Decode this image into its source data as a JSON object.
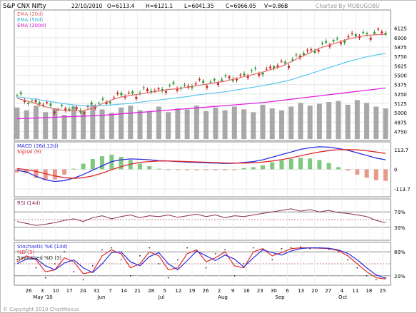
{
  "header": {
    "symbol": "S&P CNX Nifty",
    "date": "22/10/2010",
    "open": "O=6113.4",
    "high": "H=6121.1",
    "low": "L=6041.35",
    "close": "C=6066.05",
    "volume": "V=0.86B",
    "credit": "Charted By MOBUGOBU"
  },
  "footer": {
    "copyright": "© Copyright 2010 ChartNexus"
  },
  "colors": {
    "up": "#2d9c2d",
    "down": "#cc2222",
    "ema20": "#e36a6a",
    "ema50": "#58c8ee",
    "ema200": "#e020e0",
    "volume": "#a8a8a8",
    "macd": "#2c2ce0",
    "signal": "#e02a2a",
    "rsi": "#8a2a5a",
    "k": "#2c2ce0",
    "d": "#e02a2a",
    "smoothed": "#202020"
  },
  "chart_data": [
    {
      "type": "candlestick",
      "legend": [
        "EMA (20d)",
        "EMA (50d)",
        "EMA (200d)"
      ],
      "y_ticks": [
        6125,
        6000,
        5875,
        5750,
        5625,
        5500,
        5375,
        5250,
        5125,
        5000,
        4875,
        4750
      ],
      "ylim": [
        4650,
        6350
      ],
      "series": [
        {
          "name": "EMA (20d)",
          "values": [
            5190,
            5160,
            5120,
            5080,
            5050,
            5030,
            5025,
            5030,
            5060,
            5120,
            5170,
            5210,
            5230,
            5250,
            5270,
            5290,
            5310,
            5320,
            5340,
            5360,
            5380,
            5400,
            5420,
            5450,
            5480,
            5510,
            5540,
            5580,
            5620,
            5680,
            5740,
            5800,
            5860,
            5900,
            5940,
            5980,
            6010,
            6030,
            6040,
            6045
          ]
        },
        {
          "name": "EMA (50d)",
          "values": [
            5210,
            5195,
            5180,
            5160,
            5140,
            5120,
            5105,
            5095,
            5090,
            5095,
            5105,
            5115,
            5125,
            5140,
            5155,
            5170,
            5185,
            5200,
            5215,
            5235,
            5250,
            5265,
            5280,
            5300,
            5320,
            5340,
            5360,
            5385,
            5410,
            5440,
            5480,
            5520,
            5560,
            5600,
            5640,
            5680,
            5715,
            5745,
            5770,
            5790
          ]
        },
        {
          "name": "EMA (200d)",
          "values": [
            4920,
            4925,
            4930,
            4935,
            4940,
            4945,
            4950,
            4955,
            4960,
            4965,
            4975,
            4985,
            4995,
            5005,
            5015,
            5025,
            5035,
            5045,
            5055,
            5065,
            5075,
            5085,
            5095,
            5105,
            5115,
            5125,
            5135,
            5150,
            5165,
            5180,
            5195,
            5210,
            5225,
            5240,
            5255,
            5270,
            5285,
            5300,
            5315,
            5330
          ]
        }
      ],
      "volume": [
        68,
        62,
        72,
        58,
        66,
        52,
        70,
        60,
        74,
        64,
        56,
        68,
        72,
        62,
        60,
        70,
        58,
        66,
        64,
        72,
        60,
        68,
        62,
        70,
        64,
        58,
        74,
        66,
        62,
        70,
        78,
        72,
        76,
        80,
        82,
        74,
        84,
        78,
        70,
        66
      ]
    },
    {
      "type": "line",
      "name": "MACD",
      "legend": [
        "MACD (26d,12d)",
        "Signal (9)"
      ],
      "y_ticks": [
        "113.7",
        "0",
        "-113.7"
      ],
      "ylim": [
        -150,
        150
      ],
      "series": [
        {
          "name": "MACD (26d,12d)",
          "values": [
            -5,
            -15,
            -40,
            -60,
            -70,
            -65,
            -50,
            -30,
            -5,
            20,
            45,
            55,
            60,
            58,
            55,
            50,
            48,
            45,
            42,
            40,
            38,
            36,
            34,
            35,
            40,
            45,
            55,
            70,
            85,
            100,
            115,
            125,
            130,
            128,
            120,
            110,
            95,
            80,
            65,
            55
          ]
        },
        {
          "name": "Signal (9)",
          "values": [
            5,
            -2,
            -12,
            -25,
            -38,
            -48,
            -52,
            -48,
            -38,
            -22,
            -2,
            15,
            30,
            40,
            45,
            48,
            48,
            47,
            45,
            43,
            41,
            39,
            37,
            36,
            36,
            38,
            42,
            48,
            56,
            66,
            78,
            90,
            100,
            108,
            113,
            114,
            112,
            107,
            100,
            92
          ]
        }
      ]
    },
    {
      "type": "line",
      "name": "RSI",
      "legend": [
        "RSI (14d)"
      ],
      "y_ticks": [
        "70%",
        "30%"
      ],
      "ylim": [
        0,
        100
      ],
      "series": [
        {
          "name": "RSI (14d)",
          "values": [
            45,
            40,
            35,
            38,
            42,
            48,
            52,
            45,
            55,
            60,
            52,
            58,
            62,
            55,
            60,
            58,
            62,
            56,
            60,
            64,
            58,
            62,
            55,
            60,
            58,
            62,
            66,
            70,
            74,
            78,
            72,
            76,
            70,
            74,
            68,
            66,
            62,
            58,
            48,
            42
          ]
        }
      ]
    },
    {
      "type": "line",
      "name": "Stochastic",
      "legend": [
        "Stochastic %K (14d)",
        "%D (3)",
        "Smoothed %D (3)"
      ],
      "y_ticks": [
        "80%",
        "20%"
      ],
      "ylim": [
        0,
        100
      ],
      "x_ticks": [
        "26",
        "3",
        "10",
        "17",
        "24",
        "31",
        "7",
        "14",
        "21",
        "28",
        "5",
        "12",
        "19",
        "26",
        "2",
        "9",
        "16",
        "23",
        "30",
        "6",
        "13",
        "20",
        "27",
        "4",
        "11",
        "18",
        "25"
      ],
      "month_labels": [
        "May '10",
        "Jun",
        "Jul",
        "Aug",
        "Sep",
        "Oct"
      ],
      "series": [
        {
          "name": "Stochastic %K (14d)",
          "values": [
            60,
            85,
            40,
            15,
            50,
            80,
            30,
            10,
            45,
            85,
            90,
            60,
            20,
            70,
            90,
            50,
            15,
            60,
            90,
            80,
            40,
            75,
            85,
            20,
            50,
            90,
            85,
            60,
            88,
            90,
            92,
            88,
            90,
            86,
            80,
            60,
            40,
            20,
            10,
            15
          ]
        },
        {
          "name": "%D (3)",
          "values": [
            55,
            70,
            60,
            30,
            35,
            65,
            55,
            25,
            30,
            70,
            85,
            75,
            40,
            50,
            80,
            70,
            35,
            40,
            75,
            85,
            55,
            65,
            80,
            45,
            40,
            80,
            88,
            70,
            78,
            88,
            90,
            90,
            89,
            88,
            83,
            70,
            50,
            30,
            15,
            12
          ]
        },
        {
          "name": "Smoothed %D (3)",
          "values": [
            50,
            62,
            63,
            45,
            35,
            52,
            60,
            40,
            28,
            50,
            78,
            80,
            55,
            45,
            68,
            78,
            50,
            35,
            58,
            82,
            70,
            58,
            72,
            62,
            42,
            65,
            85,
            78,
            72,
            82,
            88,
            90,
            90,
            89,
            85,
            76,
            60,
            40,
            22,
            14
          ]
        }
      ]
    }
  ]
}
